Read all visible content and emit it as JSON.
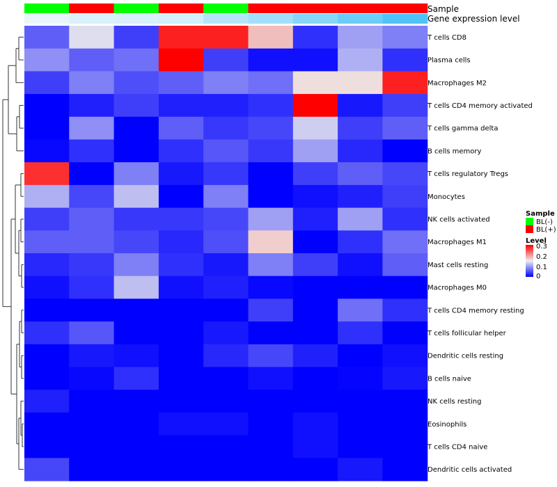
{
  "chart_data": {
    "type": "heatmap",
    "title": "",
    "annotations": {
      "sample_label": "Sample",
      "expression_label": "Gene expression level",
      "sample_groups": [
        "BL(-)",
        "BL(+)",
        "BL(-)",
        "BL(+)",
        "BL(-)",
        "BL(+)",
        "BL(+)",
        "BL(+)",
        "BL(+)"
      ],
      "expression_levels": [
        0.0,
        0.05,
        0.06,
        0.08,
        0.18,
        0.25,
        0.35,
        0.45,
        0.55
      ]
    },
    "rows": [
      "T cells CD8",
      "Plasma cells",
      "Macrophages M2",
      "T cells CD4 memory activated",
      "T cells gamma delta",
      "B cells memory",
      "T cells regulatory  Tregs",
      "Monocytes",
      "NK cells activated",
      "Macrophages M1",
      "Mast cells resting",
      "Macrophages M0",
      "T cells CD4 memory resting",
      "T cells follicular helper",
      "Dendritic cells resting",
      "B cells naive",
      "NK cells resting",
      "Eosinophils",
      "T cells CD4 naive",
      "Dendritic cells activated"
    ],
    "values": [
      [
        0.06,
        0.14,
        0.04,
        0.28,
        0.28,
        0.18,
        0.03,
        0.1,
        0.08
      ],
      [
        0.09,
        0.06,
        0.07,
        0.3,
        0.04,
        0.01,
        0.01,
        0.11,
        0.03
      ],
      [
        0.04,
        0.08,
        0.05,
        0.06,
        0.08,
        0.07,
        0.16,
        0.16,
        0.28
      ],
      [
        0.0,
        0.02,
        0.04,
        0.02,
        0.02,
        0.03,
        0.3,
        0.015,
        0.04
      ],
      [
        0.0,
        0.09,
        0.0,
        0.06,
        0.035,
        0.045,
        0.13,
        0.04,
        0.06
      ],
      [
        0.005,
        0.03,
        0.0,
        0.03,
        0.055,
        0.035,
        0.1,
        0.025,
        0.0
      ],
      [
        0.27,
        0.0,
        0.08,
        0.015,
        0.035,
        0.0,
        0.04,
        0.06,
        0.045
      ],
      [
        0.11,
        0.045,
        0.12,
        0.0,
        0.08,
        0.0,
        0.01,
        0.02,
        0.04
      ],
      [
        0.04,
        0.06,
        0.035,
        0.035,
        0.045,
        0.1,
        0.02,
        0.1,
        0.03
      ],
      [
        0.06,
        0.06,
        0.045,
        0.025,
        0.05,
        0.17,
        0.0,
        0.03,
        0.07
      ],
      [
        0.025,
        0.035,
        0.08,
        0.03,
        0.015,
        0.08,
        0.04,
        0.01,
        0.06
      ],
      [
        0.01,
        0.03,
        0.12,
        0.01,
        0.02,
        0.005,
        0.0,
        0.0,
        0.0
      ],
      [
        0.0,
        0.0,
        0.0,
        0.0,
        0.0,
        0.04,
        0.0,
        0.07,
        0.03
      ],
      [
        0.03,
        0.055,
        0.0,
        0.0,
        0.015,
        0.0,
        0.0,
        0.03,
        0.0
      ],
      [
        0.0,
        0.015,
        0.01,
        0.0,
        0.025,
        0.045,
        0.02,
        0.0,
        0.01
      ],
      [
        0.0,
        0.005,
        0.03,
        0.0,
        0.0,
        0.01,
        0.0,
        0.003,
        0.015
      ],
      [
        0.02,
        0.0,
        0.0,
        0.0,
        0.0,
        0.0,
        0.0,
        0.0,
        0.0
      ],
      [
        0.0,
        0.0,
        0.0,
        0.01,
        0.01,
        0.0,
        0.01,
        0.0,
        0.0
      ],
      [
        0.0,
        0.0,
        0.0,
        0.0,
        0.0,
        0.0,
        0.01,
        0.0,
        0.0
      ],
      [
        0.045,
        0.0,
        0.0,
        0.0,
        0.0,
        0.0,
        0.0,
        0.015,
        0.0
      ]
    ],
    "color_scale": {
      "low": "#0000FF",
      "mid": "#EEEEEE",
      "high": "#FF0000",
      "min": 0,
      "mid_value": 0.15,
      "max": 0.3
    },
    "dendrogram": "rows-left"
  },
  "legend": {
    "sample_title": "Sample",
    "sample_entries": [
      {
        "label": "BL(-)",
        "color": "#00FF00"
      },
      {
        "label": "BL(+)",
        "color": "#FF0000"
      }
    ],
    "level_title": "Level",
    "level_ticks": [
      "0.3",
      "0.2",
      "0.1",
      "0"
    ]
  },
  "colors": {
    "expr_low": "#E8F6FC",
    "expr_high": "#4FC3F7"
  }
}
